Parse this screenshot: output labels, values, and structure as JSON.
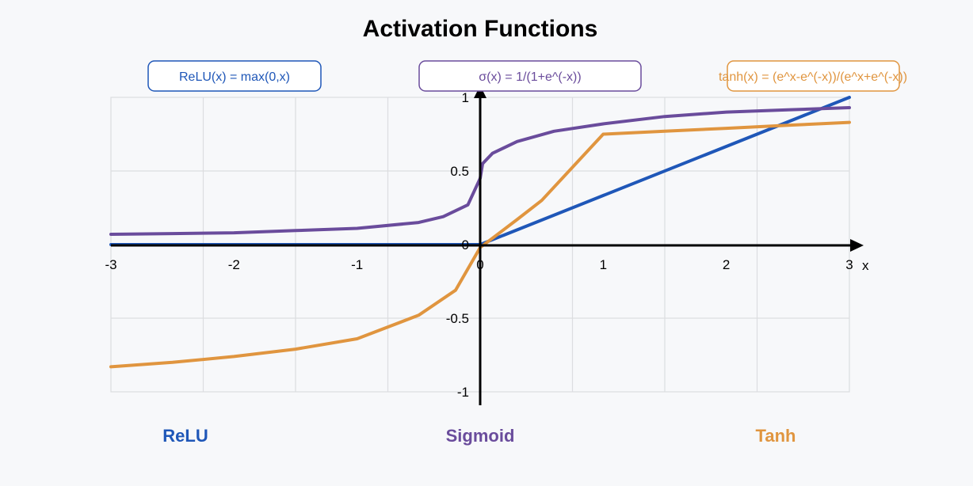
{
  "colors": {
    "background": "#f7f8fa",
    "grid": "#dcdde0",
    "axis": "#000000",
    "relu": "#1f57b8",
    "sigmoid": "#6a4c9c",
    "tanh": "#e0953f"
  },
  "chart_data": {
    "type": "line",
    "title": "Activation Functions",
    "xlabel": "x",
    "ylabel": "",
    "xlim": [
      -3,
      3
    ],
    "ylim": [
      -1,
      1
    ],
    "x_ticks": [
      -3,
      -2,
      -1,
      0,
      1,
      2,
      3
    ],
    "x_tick_labels": [
      "-3",
      "-2",
      "-1",
      "0",
      "1",
      "2",
      "3"
    ],
    "y_ticks": [
      1,
      0.5,
      0,
      -0.5,
      -1
    ],
    "y_tick_labels": [
      "1",
      "0.5",
      "0",
      "-0.5",
      "-1"
    ],
    "grid": true,
    "series": [
      {
        "name": "ReLU",
        "formula": "ReLU(x) = max(0,x)",
        "color": "#1f57b8",
        "points": [
          [
            -3,
            0
          ],
          [
            0,
            0
          ],
          [
            3,
            1
          ]
        ]
      },
      {
        "name": "Sigmoid",
        "formula": "σ(x) = 1/(1+e^(-x))",
        "color": "#6a4c9c",
        "points": [
          [
            -3,
            0.07
          ],
          [
            -2.5,
            0.075
          ],
          [
            -2,
            0.08
          ],
          [
            -1.5,
            0.095
          ],
          [
            -1,
            0.11
          ],
          [
            -0.5,
            0.15
          ],
          [
            -0.3,
            0.19
          ],
          [
            -0.1,
            0.27
          ],
          [
            0,
            0.45
          ],
          [
            0.02,
            0.55
          ],
          [
            0.1,
            0.62
          ],
          [
            0.3,
            0.7
          ],
          [
            0.6,
            0.77
          ],
          [
            1,
            0.82
          ],
          [
            1.5,
            0.87
          ],
          [
            2,
            0.9
          ],
          [
            2.5,
            0.915
          ],
          [
            3,
            0.93
          ]
        ]
      },
      {
        "name": "Tanh",
        "formula": "tanh(x) = (e^x-e^(-x))/(e^x+e^(-x))",
        "color": "#e0953f",
        "points": [
          [
            -3,
            -0.83
          ],
          [
            -2.5,
            -0.8
          ],
          [
            -2,
            -0.76
          ],
          [
            -1.5,
            -0.71
          ],
          [
            -1,
            -0.64
          ],
          [
            -0.5,
            -0.48
          ],
          [
            -0.2,
            -0.31
          ],
          [
            0,
            -0.02
          ],
          [
            0.3,
            0.17
          ],
          [
            0.5,
            0.3
          ],
          [
            1,
            0.75
          ],
          [
            1.5,
            0.77
          ],
          [
            2,
            0.79
          ],
          [
            2.5,
            0.81
          ],
          [
            3,
            0.83
          ]
        ]
      }
    ]
  }
}
